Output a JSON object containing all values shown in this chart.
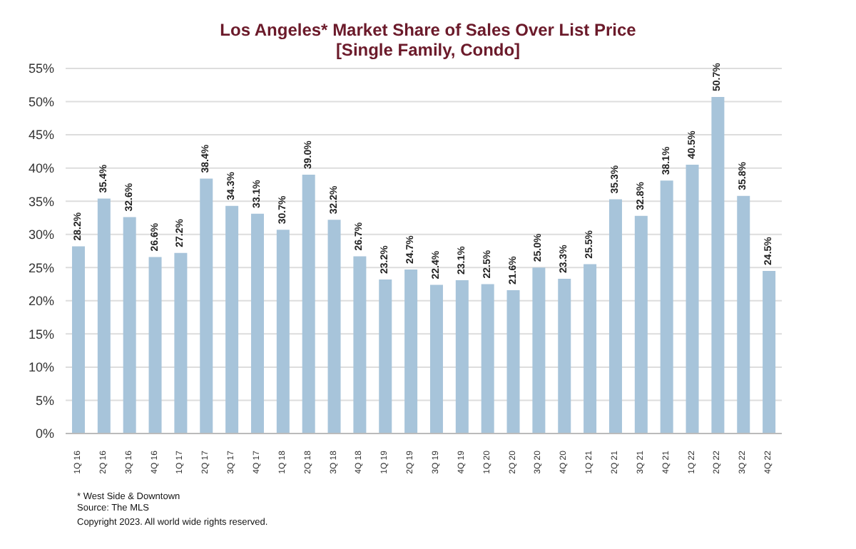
{
  "chart_data": {
    "type": "bar",
    "title": "Los Angeles* Market Share of Sales Over List Price",
    "subtitle": "[Single Family, Condo]",
    "categories": [
      "1Q 16",
      "2Q 16",
      "3Q 16",
      "4Q 16",
      "1Q 17",
      "2Q 17",
      "3Q 17",
      "4Q 17",
      "1Q 18",
      "2Q 18",
      "3Q 18",
      "4Q 18",
      "1Q 19",
      "2Q 19",
      "3Q 19",
      "4Q 19",
      "1Q 20",
      "2Q 20",
      "3Q 20",
      "4Q 20",
      "1Q 21",
      "2Q 21",
      "3Q 21",
      "4Q 21",
      "1Q 22",
      "2Q 22",
      "3Q 22",
      "4Q 22"
    ],
    "values": [
      28.2,
      35.4,
      32.6,
      26.6,
      27.2,
      38.4,
      34.3,
      33.1,
      30.7,
      39.0,
      32.2,
      26.7,
      23.2,
      24.7,
      22.4,
      23.1,
      22.5,
      21.6,
      25.0,
      23.3,
      25.5,
      35.3,
      32.8,
      38.1,
      40.5,
      50.7,
      35.8,
      24.5
    ],
    "value_labels": [
      "28.2%",
      "35.4%",
      "32.6%",
      "26.6%",
      "27.2%",
      "38.4%",
      "34.3%",
      "33.1%",
      "30.7%",
      "39.0%",
      "32.2%",
      "26.7%",
      "23.2%",
      "24.7%",
      "22.4%",
      "23.1%",
      "22.5%",
      "21.6%",
      "25.0%",
      "23.3%",
      "25.5%",
      "35.3%",
      "32.8%",
      "38.1%",
      "40.5%",
      "50.7%",
      "35.8%",
      "24.5%"
    ],
    "color": "#a7c4da",
    "ylim": [
      0,
      55
    ],
    "yticks": [
      {
        "value": 0,
        "label": "0%"
      },
      {
        "value": 5,
        "label": "5%"
      },
      {
        "value": 10,
        "label": "10%"
      },
      {
        "value": 15,
        "label": "15%"
      },
      {
        "value": 20,
        "label": "20%"
      },
      {
        "value": 25,
        "label": "25%"
      },
      {
        "value": 30,
        "label": "30%"
      },
      {
        "value": 35,
        "label": "35%"
      },
      {
        "value": 40,
        "label": "40%"
      },
      {
        "value": 45,
        "label": "45%"
      },
      {
        "value": 50,
        "label": "50%"
      },
      {
        "value": 55,
        "label": "55%"
      }
    ],
    "grid": "y",
    "annotations": [
      "* West Side & Downtown",
      "Source: The MLS",
      "Copyright 2023. All world wide rights reserved."
    ]
  }
}
